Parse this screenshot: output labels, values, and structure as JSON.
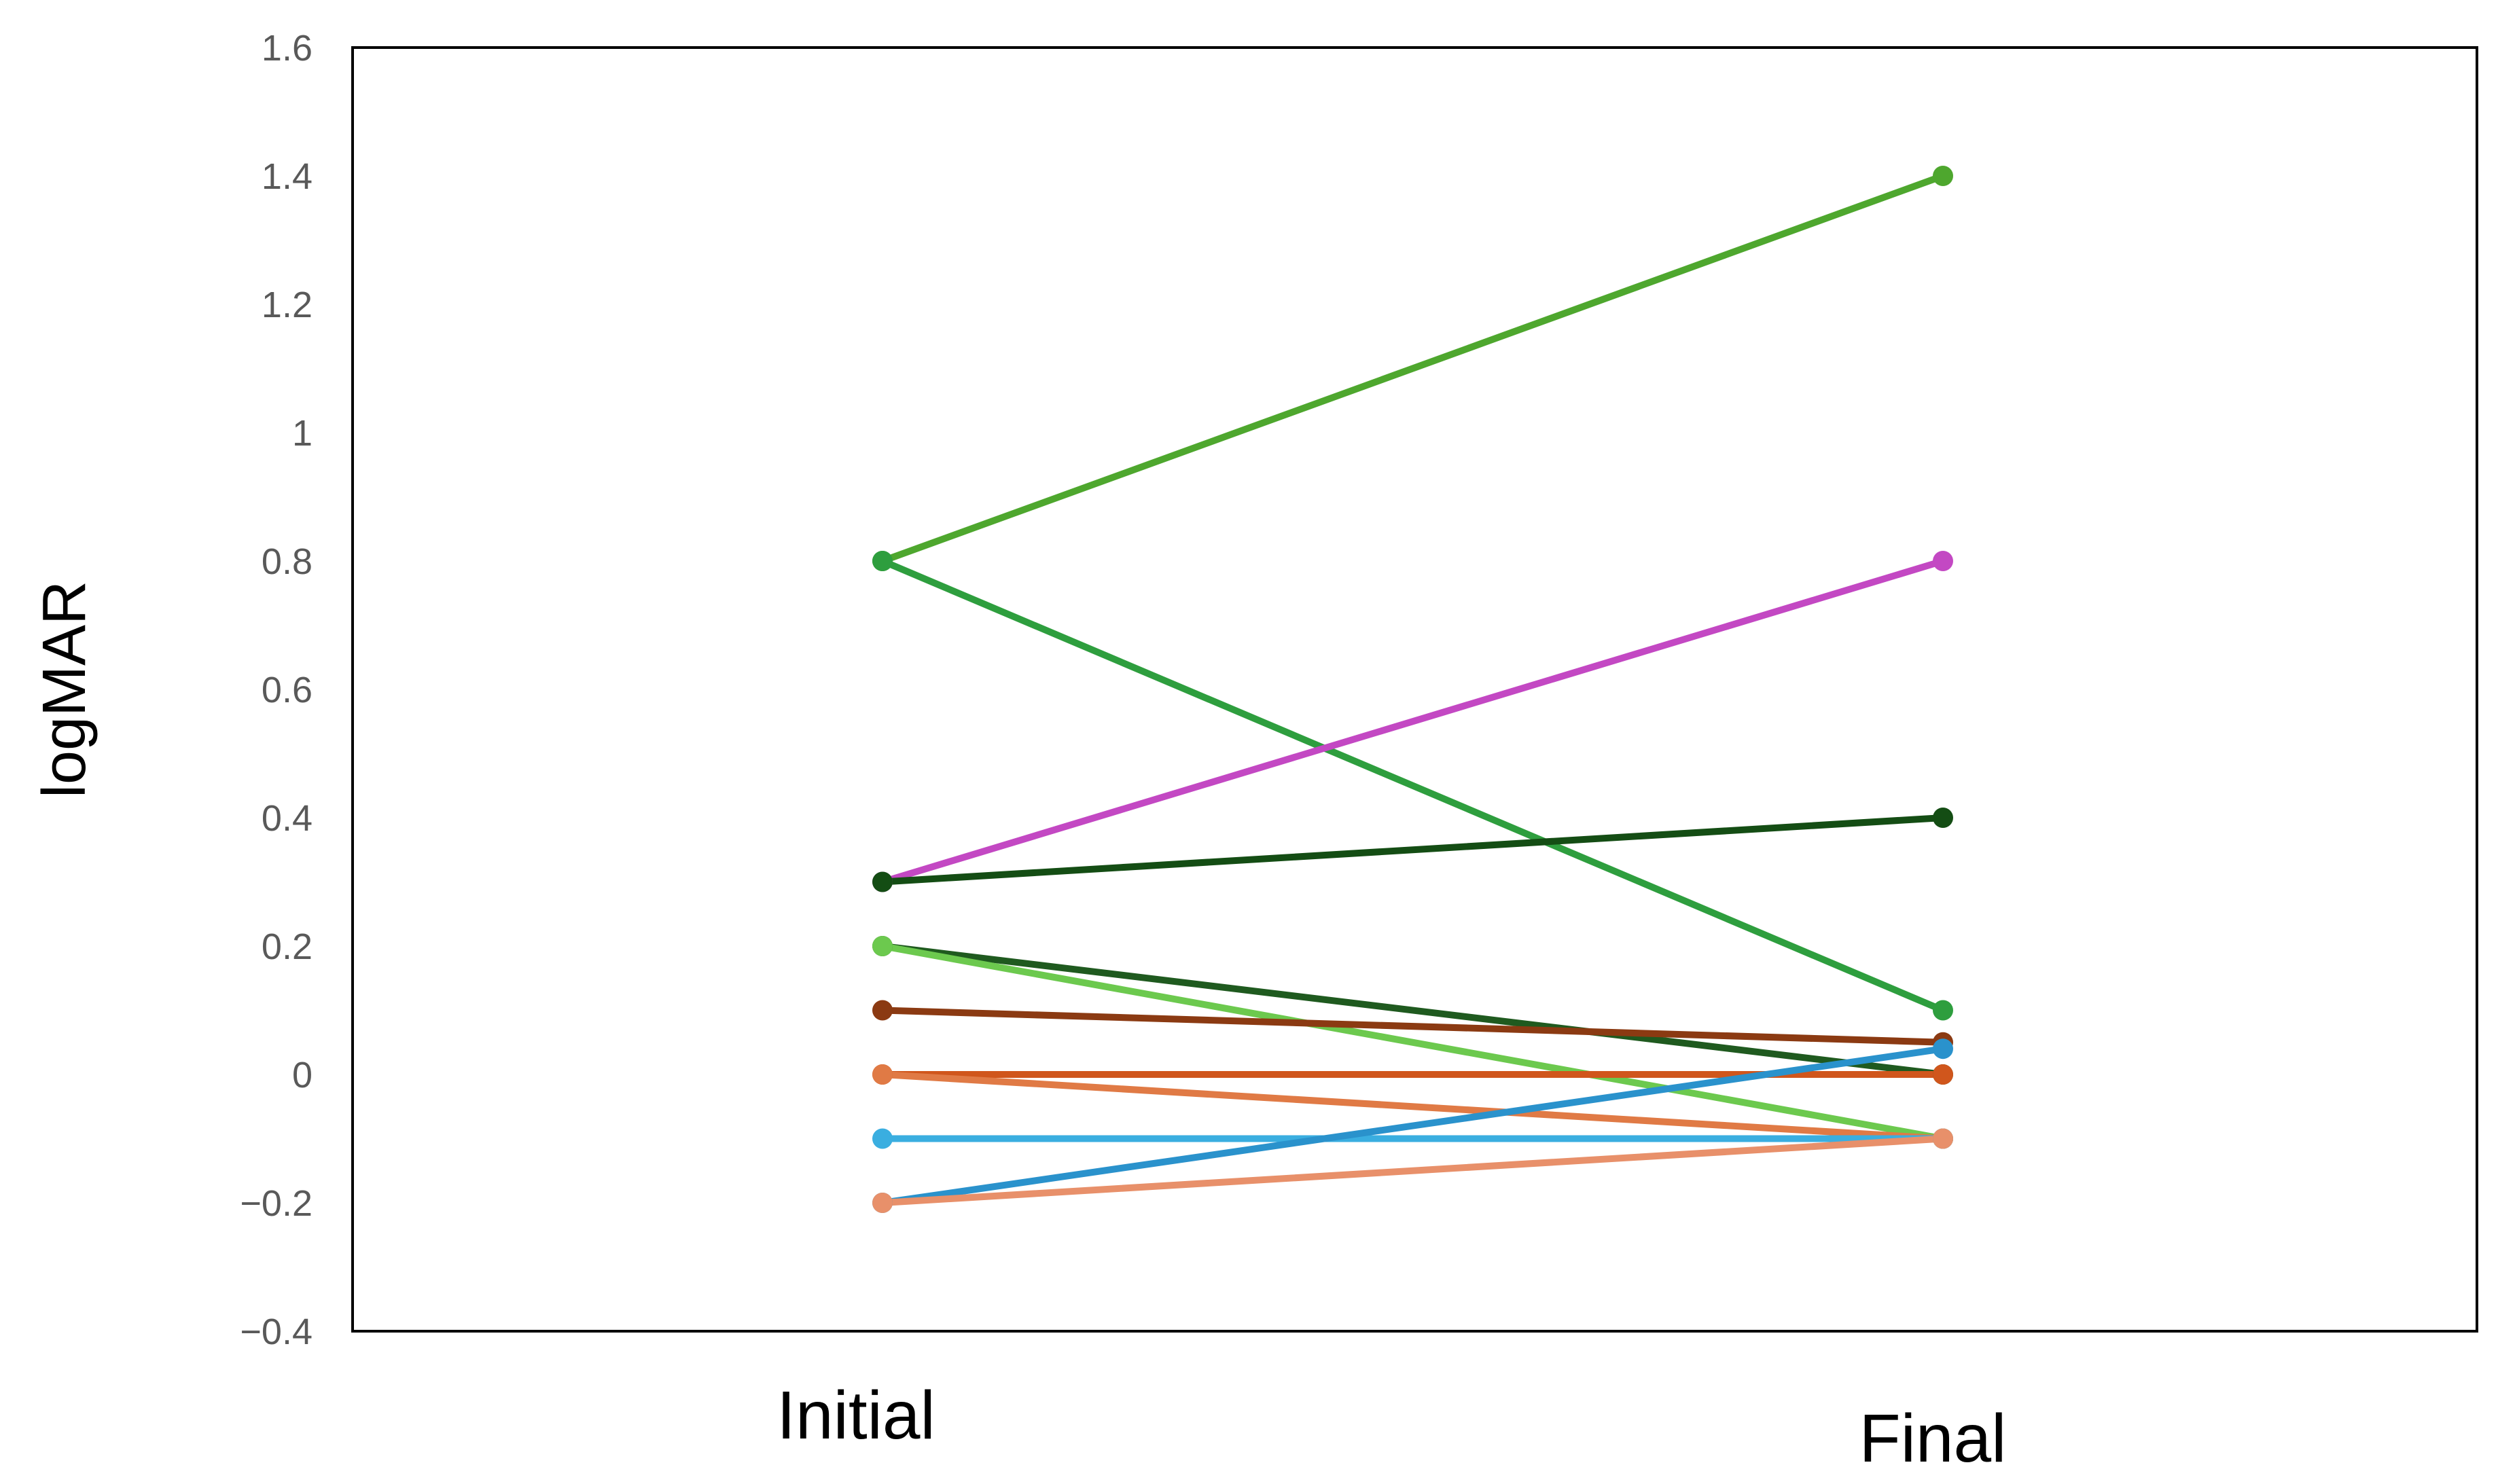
{
  "chart_data": {
    "type": "line",
    "title": "",
    "xlabel": "",
    "ylabel": "logMAR",
    "categories": [
      "Initial",
      "Final"
    ],
    "ylim": [
      -0.4,
      1.6
    ],
    "yticks": [
      1.6,
      1.4,
      1.2,
      1,
      0.8,
      0.6,
      0.4,
      0.2,
      0,
      -0.2,
      -0.4
    ],
    "ytick_labels": [
      "1.6",
      "1.4",
      "1.2",
      "1",
      "0.8",
      "0.6",
      "0.4",
      "0.2",
      "0",
      "−0.2",
      "−0.4"
    ],
    "grid": false,
    "legend": "none",
    "series": [
      {
        "values": [
          0.8,
          1.4
        ],
        "color": "#4ea72e"
      },
      {
        "values": [
          0.8,
          0.1
        ],
        "color": "#2e9e3e"
      },
      {
        "values": [
          0.3,
          0.8
        ],
        "color": "#c348c3"
      },
      {
        "values": [
          0.3,
          0.4
        ],
        "color": "#144d14"
      },
      {
        "values": [
          0.2,
          0.0
        ],
        "color": "#1f5a1f"
      },
      {
        "values": [
          0.2,
          -0.1
        ],
        "color": "#6cc94e"
      },
      {
        "values": [
          0.1,
          0.05
        ],
        "color": "#8b3a12"
      },
      {
        "values": [
          0.0,
          0.0
        ],
        "color": "#d0561c"
      },
      {
        "values": [
          0.0,
          -0.1
        ],
        "color": "#e07a45"
      },
      {
        "values": [
          -0.1,
          -0.1
        ],
        "color": "#3aaee0"
      },
      {
        "values": [
          -0.2,
          0.04
        ],
        "color": "#2a92cc"
      },
      {
        "values": [
          -0.2,
          -0.1
        ],
        "color": "#e8906a"
      }
    ]
  }
}
